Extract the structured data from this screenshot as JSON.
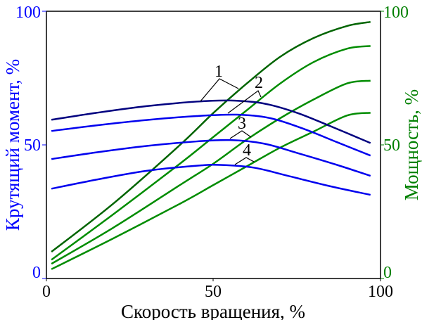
{
  "chart_data": {
    "type": "line",
    "xlabel": "Скорость вращения, %",
    "ylabel_left": "Крутящий момент, %",
    "ylabel_right": "Мощность, %",
    "xlim": [
      0,
      100
    ],
    "ylim_left": [
      0,
      100
    ],
    "ylim_right": [
      0,
      100
    ],
    "x_ticks": [
      "0",
      "50",
      "100"
    ],
    "y_ticks_left": [
      "0",
      "50",
      "100"
    ],
    "y_ticks_right": [
      "0",
      "50",
      "100"
    ],
    "grid": false,
    "colors": {
      "torque_1": "#00007f",
      "torque": "#0000ee",
      "power_1": "#006400",
      "power": "#008c00",
      "left_axis": "#0000ff",
      "right_axis": "#008000"
    },
    "torque_series": [
      {
        "name": "1",
        "points": [
          [
            1.5,
            59.4
          ],
          [
            15,
            62
          ],
          [
            30,
            64.5
          ],
          [
            45,
            66.2
          ],
          [
            55,
            66.6
          ],
          [
            65,
            65.5
          ],
          [
            75,
            62
          ],
          [
            85,
            57
          ],
          [
            97,
            50.7
          ]
        ]
      },
      {
        "name": "2",
        "points": [
          [
            1.5,
            55.2
          ],
          [
            15,
            57.3
          ],
          [
            30,
            59.3
          ],
          [
            45,
            60.8
          ],
          [
            57,
            61.3
          ],
          [
            67,
            60
          ],
          [
            77,
            56
          ],
          [
            87,
            51
          ],
          [
            97,
            46
          ]
        ]
      },
      {
        "name": "3",
        "points": [
          [
            1.5,
            44.7
          ],
          [
            15,
            47.2
          ],
          [
            30,
            49.6
          ],
          [
            45,
            51.3
          ],
          [
            55,
            51.8
          ],
          [
            65,
            50.5
          ],
          [
            75,
            47
          ],
          [
            87,
            42.5
          ],
          [
            97,
            38.4
          ]
        ]
      },
      {
        "name": "4",
        "points": [
          [
            1.5,
            33.6
          ],
          [
            15,
            37
          ],
          [
            30,
            40.3
          ],
          [
            45,
            42.2
          ],
          [
            52,
            42.5
          ],
          [
            62,
            41.5
          ],
          [
            72,
            38.5
          ],
          [
            85,
            34.5
          ],
          [
            97,
            31.3
          ]
        ]
      }
    ],
    "power_series": [
      {
        "name": "1",
        "points": [
          [
            1.5,
            10
          ],
          [
            20,
            28
          ],
          [
            40,
            50
          ],
          [
            50,
            62
          ],
          [
            60,
            73
          ],
          [
            70,
            83
          ],
          [
            80,
            90
          ],
          [
            90,
            94.5
          ],
          [
            97,
            96
          ]
        ]
      },
      {
        "name": "2",
        "points": [
          [
            1.5,
            7
          ],
          [
            20,
            24
          ],
          [
            40,
            43
          ],
          [
            50,
            53
          ],
          [
            60,
            63
          ],
          [
            70,
            73
          ],
          [
            80,
            81
          ],
          [
            90,
            86
          ],
          [
            97,
            87
          ]
        ]
      },
      {
        "name": "3",
        "points": [
          [
            1.5,
            5.5
          ],
          [
            20,
            19
          ],
          [
            40,
            35
          ],
          [
            50,
            43
          ],
          [
            60,
            52
          ],
          [
            70,
            60
          ],
          [
            80,
            67
          ],
          [
            90,
            73
          ],
          [
            97,
            74
          ]
        ]
      },
      {
        "name": "4",
        "points": [
          [
            1.5,
            3.5
          ],
          [
            20,
            15
          ],
          [
            40,
            28
          ],
          [
            50,
            35
          ],
          [
            60,
            42
          ],
          [
            70,
            49
          ],
          [
            80,
            55
          ],
          [
            90,
            61
          ],
          [
            97,
            62
          ]
        ]
      }
    ],
    "annotations": [
      "1",
      "2",
      "3",
      "4"
    ]
  }
}
